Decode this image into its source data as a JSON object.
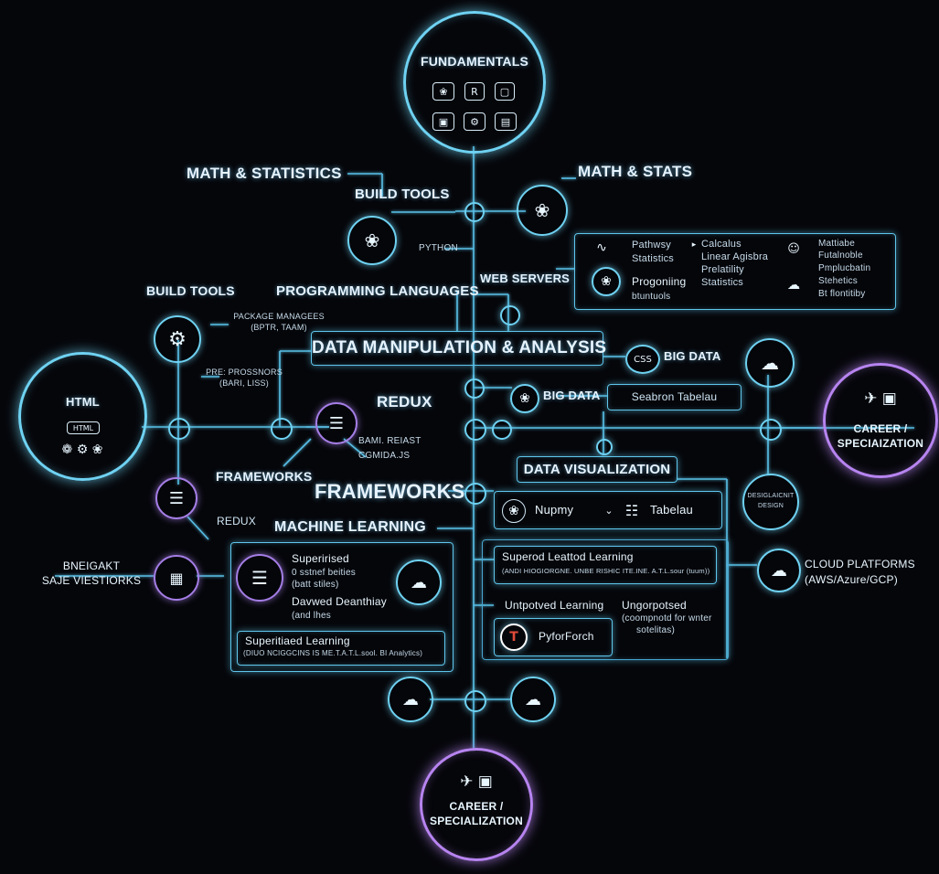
{
  "colors": {
    "background": "#05060a",
    "cyan": "#6fd2f2",
    "purple": "#b784f0",
    "text": "#e6f3ff"
  },
  "fundamentals": {
    "title": "FUNDAMENTALS",
    "icons": [
      "python-icon",
      "r-icon",
      "square-icon",
      "monitor-icon",
      "gear-icon",
      "screen-icon"
    ],
    "r_glyph": "R"
  },
  "math_statistics": "MATH & STATISTICS",
  "build_tools_top": "BUILD TOOLS",
  "math_stats": "MATH & STATS",
  "python_label": "PYTHON",
  "web_servers": "WEB SERVERS",
  "programming_languages": "PROGRAMMING LANGUAGES",
  "build_tools_left": "BUILD TOOLS",
  "package_managers": [
    "PACKAGE MANAGEES",
    "(BPTR, TAAM)"
  ],
  "preprocessors": [
    "PRE: PROSSNORS",
    "(BARI, LISS)"
  ],
  "data_manipulation": "DATA MANIPULATION & ANALYSIS",
  "css_icon_label": "CSS",
  "big_data_1": "BIG DATA",
  "big_data_2": "BIG DATA",
  "seabron_tabelau": "Seabron  Tabelau",
  "redux_top": "REDUX",
  "bami_reiast": [
    "BAMI. REIAST",
    "CGMIDA.JS"
  ],
  "frameworks_small": "FRAMEWORKS",
  "frameworks_big": "FRAMEWORKS",
  "data_visualization": "DATA VISUALIZATION",
  "nupmy": "Nupmy",
  "tabelau": "Tabelau",
  "redux_left": "REDUX",
  "machine_learning": "MACHINE LEARNING",
  "html_hub": {
    "title": "HTML",
    "chip": "HTML"
  },
  "left_label": [
    "BNEIGAKT",
    "SAJE VIESTIORKS"
  ],
  "ml_panel": {
    "supervised": "Superirised",
    "lines": [
      "0 sstnef beities",
      "(batt stiles)"
    ],
    "davwed": "Davwed Deanthiay",
    "and": "(and lhes"
  },
  "ml_bottom": {
    "title": "Superitiaed Learning",
    "sub": "(DIUO NCIGGCINS IS ME.T.A.T.L.sool. BI Analytics)"
  },
  "superod": {
    "title": "Superod Leattod Learning",
    "sub": "(ANDI HIOGIORGNE. UNBE RISHIC ITE.INE. A.T.L.sour (tuum))"
  },
  "unpotved": "Untpotved Learning",
  "ungorpotsed": [
    "Ungorpotsed",
    "(coompnotd for wnter",
    "sotelitas)"
  ],
  "pytorch": {
    "glyph": "T",
    "label": "PyforForch"
  },
  "cloud_platforms": [
    "CLOUD PLATFORMS",
    "(AWS/Azure/GCP)"
  ],
  "career_right": [
    "CAREER /",
    "SPECIAIZATION"
  ],
  "career_bottom": [
    "CAREER /",
    "SPECIALIZATION"
  ],
  "design_node": [
    "DESIGLAICNIT",
    "DESIGN"
  ],
  "right_panel": {
    "col1": [
      "Pathwsy",
      "Statistics"
    ],
    "col2": [
      "Calcalus",
      "Linear Agisbra",
      "Prelatility",
      "Statistics"
    ],
    "col3": [
      "Mattiabe",
      "Futalnoble",
      "Pmplucbatin",
      "Stehetics",
      "Bt flontitiby"
    ],
    "progr": [
      "Progoniing",
      "btuntuols"
    ]
  }
}
